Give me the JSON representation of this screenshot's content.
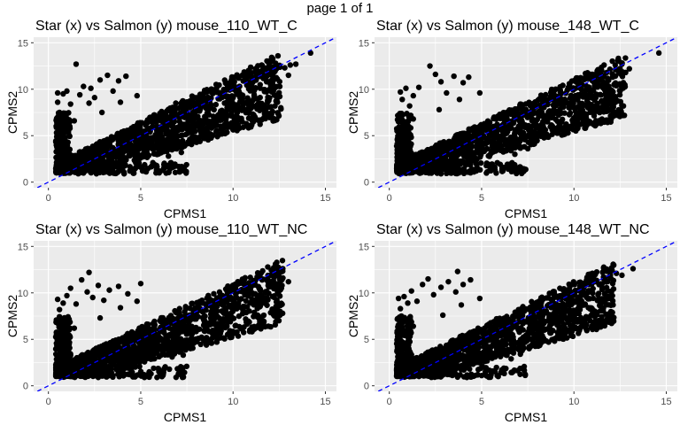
{
  "page_label": "page 1 of 1",
  "colors": {
    "panel_bg": "#EBEBEB",
    "grid": "#FFFFFF",
    "point": "#000000",
    "reference_line": "#0000FF",
    "text": "#000000",
    "tick_text": "#4D4D4D"
  },
  "chart_data": [
    {
      "type": "scatter",
      "title": "Star (x) vs Salmon (y) mouse_110_WT_C",
      "xlabel": "CPMS1",
      "ylabel": "CPMS2",
      "xlim": [
        -0.8,
        15.6
      ],
      "ylim": [
        -0.6,
        15.6
      ],
      "xticks": [
        0,
        5,
        10,
        15
      ],
      "yticks": [
        0,
        5,
        10,
        15
      ],
      "grid": true,
      "reference_line": {
        "type": "identity",
        "style": "dashed",
        "color": "#0000FF"
      },
      "points": [
        [
          0.5,
          9.6
        ],
        [
          0.5,
          8.6
        ],
        [
          0.6,
          7.5
        ],
        [
          0.8,
          9.5
        ],
        [
          1.0,
          9.8
        ],
        [
          1.2,
          8.4
        ],
        [
          1.5,
          12.7
        ],
        [
          1.7,
          9.4
        ],
        [
          1.9,
          10.3
        ],
        [
          2.2,
          8.5
        ],
        [
          2.3,
          10.1
        ],
        [
          2.5,
          9.1
        ],
        [
          2.8,
          11.0
        ],
        [
          3.2,
          11.5
        ],
        [
          3.5,
          9.8
        ],
        [
          3.8,
          10.9
        ],
        [
          4.2,
          11.4
        ],
        [
          2.0,
          1.2
        ],
        [
          2.6,
          0.9
        ],
        [
          3.1,
          1.1
        ],
        [
          4.1,
          0.9
        ],
        [
          5.1,
          1.2
        ],
        [
          6.0,
          1.0
        ],
        [
          6.5,
          2.8
        ],
        [
          7.2,
          3.2
        ],
        [
          1.4,
          6.6
        ],
        [
          2.9,
          7.5
        ],
        [
          3.9,
          8.6
        ],
        [
          4.8,
          9.3
        ],
        [
          13.1,
          12.6
        ],
        [
          13.4,
          12.7
        ],
        [
          14.2,
          13.9
        ],
        [
          13.0,
          11.5
        ],
        [
          12.4,
          11.1
        ],
        [
          12.8,
          12.3
        ],
        [
          11.2,
          11.9
        ],
        [
          10.8,
          10.4
        ],
        [
          9.9,
          10.1
        ],
        [
          11.7,
          12.2
        ],
        [
          6.9,
          8.5
        ]
      ],
      "density_band": {
        "x_range": [
          0.4,
          12.6
        ],
        "y_lower_at_xmax": 7.2,
        "y_upper_at_xmax": 12.4
      }
    },
    {
      "type": "scatter",
      "title": "Star (x) vs Salmon (y) mouse_148_WT_C",
      "xlabel": "CPMS1",
      "ylabel": "CPMS2",
      "xlim": [
        -0.8,
        15.6
      ],
      "ylim": [
        -0.6,
        15.6
      ],
      "xticks": [
        0,
        5,
        10,
        15
      ],
      "yticks": [
        0,
        5,
        10,
        15
      ],
      "grid": true,
      "reference_line": {
        "type": "identity",
        "style": "dashed",
        "color": "#0000FF"
      },
      "points": [
        [
          0.6,
          9.7
        ],
        [
          0.7,
          8.9
        ],
        [
          0.9,
          10.1
        ],
        [
          1.1,
          8.2
        ],
        [
          1.3,
          9.3
        ],
        [
          1.6,
          10.2
        ],
        [
          2.2,
          12.5
        ],
        [
          2.5,
          11.6
        ],
        [
          2.8,
          10.8
        ],
        [
          3.1,
          9.6
        ],
        [
          3.5,
          11.4
        ],
        [
          4.0,
          10.7
        ],
        [
          4.3,
          11.3
        ],
        [
          2.1,
          1.1
        ],
        [
          2.8,
          0.9
        ],
        [
          3.4,
          1.2
        ],
        [
          4.4,
          1.0
        ],
        [
          5.3,
          1.1
        ],
        [
          6.1,
          1.2
        ],
        [
          6.8,
          3.0
        ],
        [
          7.5,
          3.6
        ],
        [
          1.3,
          6.8
        ],
        [
          2.7,
          7.8
        ],
        [
          3.8,
          8.9
        ],
        [
          4.9,
          9.6
        ],
        [
          12.6,
          12.7
        ],
        [
          13.0,
          12.2
        ],
        [
          14.6,
          13.9
        ],
        [
          12.8,
          11.8
        ],
        [
          12.1,
          11.3
        ],
        [
          11.5,
          12.0
        ],
        [
          11.0,
          11.6
        ],
        [
          10.4,
          10.6
        ],
        [
          9.7,
          10.2
        ],
        [
          11.3,
          12.1
        ],
        [
          7.1,
          8.4
        ]
      ],
      "density_band": {
        "x_range": [
          0.4,
          12.8
        ],
        "y_lower_at_xmax": 7.3,
        "y_upper_at_xmax": 12.2
      }
    },
    {
      "type": "scatter",
      "title": "Star (x) vs Salmon (y) mouse_110_WT_NC",
      "xlabel": "CPMS1",
      "ylabel": "CPMS2",
      "xlim": [
        -0.8,
        15.6
      ],
      "ylim": [
        -0.6,
        15.6
      ],
      "xticks": [
        0,
        5,
        10,
        15
      ],
      "yticks": [
        0,
        5,
        10,
        15
      ],
      "grid": true,
      "reference_line": {
        "type": "identity",
        "style": "dashed",
        "color": "#0000FF"
      },
      "points": [
        [
          0.5,
          9.3
        ],
        [
          0.6,
          8.2
        ],
        [
          0.8,
          8.9
        ],
        [
          1.0,
          9.7
        ],
        [
          1.2,
          10.5
        ],
        [
          1.5,
          8.8
        ],
        [
          1.8,
          11.4
        ],
        [
          2.1,
          10.1
        ],
        [
          2.4,
          9.5
        ],
        [
          2.7,
          10.8
        ],
        [
          3.0,
          9.2
        ],
        [
          3.3,
          10.3
        ],
        [
          3.8,
          10.7
        ],
        [
          4.3,
          9.9
        ],
        [
          5.0,
          11.0
        ],
        [
          2.2,
          12.2
        ],
        [
          2.0,
          1.0
        ],
        [
          2.7,
          0.9
        ],
        [
          3.3,
          1.1
        ],
        [
          4.4,
          1.2
        ],
        [
          5.2,
          0.9
        ],
        [
          6.2,
          1.1
        ],
        [
          6.7,
          3.1
        ],
        [
          7.3,
          3.3
        ],
        [
          1.4,
          6.2
        ],
        [
          2.8,
          7.3
        ],
        [
          3.9,
          8.4
        ],
        [
          4.8,
          9.1
        ],
        [
          12.7,
          11.6
        ],
        [
          13.0,
          11.2
        ],
        [
          12.5,
          12.1
        ],
        [
          12.2,
          12.7
        ],
        [
          11.9,
          10.8
        ],
        [
          11.3,
          11.7
        ],
        [
          10.6,
          10.9
        ],
        [
          9.8,
          10.4
        ],
        [
          7.1,
          8.3
        ]
      ],
      "density_band": {
        "x_range": [
          0.4,
          12.7
        ],
        "y_lower_at_xmax": 7.1,
        "y_upper_at_xmax": 12.0
      }
    },
    {
      "type": "scatter",
      "title": "Star (x) vs Salmon (y) mouse_148_WT_NC",
      "xlabel": "CPMS1",
      "ylabel": "CPMS2",
      "xlim": [
        -0.8,
        15.6
      ],
      "ylim": [
        -0.6,
        15.6
      ],
      "xticks": [
        0,
        5,
        10,
        15
      ],
      "yticks": [
        0,
        5,
        10,
        15
      ],
      "grid": true,
      "reference_line": {
        "type": "identity",
        "style": "dashed",
        "color": "#0000FF"
      },
      "points": [
        [
          0.5,
          9.4
        ],
        [
          0.6,
          8.3
        ],
        [
          0.8,
          9.6
        ],
        [
          1.0,
          8.9
        ],
        [
          1.2,
          10.2
        ],
        [
          1.5,
          9.1
        ],
        [
          1.8,
          10.9
        ],
        [
          2.1,
          11.5
        ],
        [
          2.4,
          9.8
        ],
        [
          2.8,
          10.6
        ],
        [
          3.2,
          11.2
        ],
        [
          3.6,
          10.1
        ],
        [
          4.0,
          10.9
        ],
        [
          4.4,
          11.4
        ],
        [
          3.7,
          12.3
        ],
        [
          2.0,
          1.1
        ],
        [
          2.6,
          1.0
        ],
        [
          3.3,
          1.2
        ],
        [
          4.2,
          0.9
        ],
        [
          5.0,
          1.1
        ],
        [
          5.9,
          1.0
        ],
        [
          6.6,
          2.9
        ],
        [
          7.1,
          3.4
        ],
        [
          1.3,
          6.4
        ],
        [
          2.9,
          7.6
        ],
        [
          3.9,
          8.7
        ],
        [
          4.9,
          9.4
        ],
        [
          12.3,
          12.1
        ],
        [
          12.6,
          11.9
        ],
        [
          13.2,
          12.6
        ],
        [
          12.1,
          11.0
        ],
        [
          11.6,
          11.7
        ],
        [
          11.0,
          12.1
        ],
        [
          10.4,
          10.8
        ],
        [
          9.7,
          10.3
        ],
        [
          7.0,
          8.2
        ]
      ],
      "density_band": {
        "x_range": [
          0.4,
          12.2
        ],
        "y_lower_at_xmax": 7.0,
        "y_upper_at_xmax": 11.8
      }
    }
  ]
}
